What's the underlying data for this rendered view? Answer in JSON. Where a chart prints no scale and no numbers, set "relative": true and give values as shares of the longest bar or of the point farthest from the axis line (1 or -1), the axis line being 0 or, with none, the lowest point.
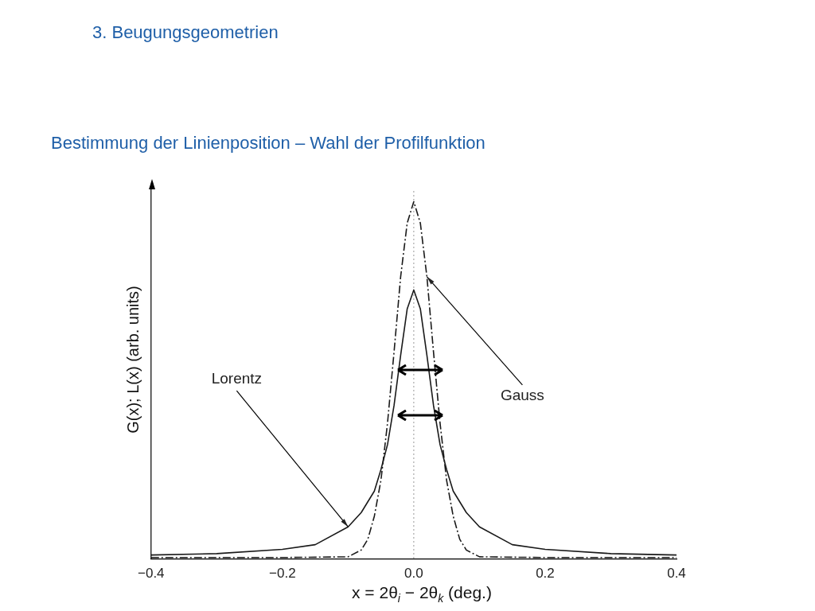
{
  "chart_data": {
    "type": "line",
    "title": "3. Beugungsgeometrien",
    "subtitle": "Bestimmung der Linienposition – Wahl der Profilfunktion",
    "xlabel": "x = 2θ$_{i}$ − 2θ$_{k}$ (deg.)",
    "ylabel": "G(x); L(x) (arb. units)",
    "relative": true,
    "xlim": [
      -0.4,
      0.4
    ],
    "xticks": [
      {
        "value": -0.4,
        "label": "−0.4"
      },
      {
        "value": -0.2,
        "label": "−0.2"
      },
      {
        "value": 0,
        "label": "0.0"
      },
      {
        "value": 0.2,
        "label": "0.2"
      },
      {
        "value": 0.4,
        "label": "0.4"
      }
    ],
    "series": [
      {
        "color": "#1a1a1a",
        "line_style": "solid",
        "x": [
          -0.4,
          -0.3,
          -0.2,
          -0.15,
          -0.1,
          -0.08,
          -0.06,
          -0.05,
          -0.04,
          -0.03,
          -0.02,
          -0.01,
          0,
          0.01,
          0.02,
          0.03,
          0.04,
          0.05,
          0.06,
          0.08,
          0.1,
          0.15,
          0.2,
          0.3,
          0.4
        ],
        "values": [
          0.011,
          0.015,
          0.027,
          0.04,
          0.09,
          0.13,
          0.19,
          0.25,
          0.32,
          0.43,
          0.57,
          0.7,
          0.753,
          0.7,
          0.57,
          0.43,
          0.32,
          0.25,
          0.19,
          0.13,
          0.09,
          0.04,
          0.027,
          0.015,
          0.011
        ]
      },
      {
        "color": "#1a1a1a",
        "line_style": "dashed",
        "x": [
          -0.4,
          -0.2,
          -0.1,
          -0.08,
          -0.07,
          -0.06,
          -0.05,
          -0.04,
          -0.03,
          -0.02,
          -0.01,
          0,
          0.01,
          0.02,
          0.03,
          0.04,
          0.05,
          0.06,
          0.07,
          0.08,
          0.1,
          0.2,
          0.4
        ],
        "values": [
          0.004,
          0.004,
          0.006,
          0.025,
          0.055,
          0.12,
          0.22,
          0.38,
          0.58,
          0.79,
          0.94,
          1,
          0.94,
          0.79,
          0.58,
          0.38,
          0.22,
          0.12,
          0.055,
          0.025,
          0.006,
          0.004,
          0.004
        ]
      }
    ],
    "ref_lines": [
      {
        "axis": "x",
        "value": 0,
        "color": "#999999",
        "line_style": "dotted"
      }
    ],
    "annotations": [
      {
        "text": "Lorentz",
        "x": -0.1,
        "y": 0.09
      },
      {
        "text": "Gauss",
        "x": 0.02,
        "y": 0.79
      }
    ]
  }
}
